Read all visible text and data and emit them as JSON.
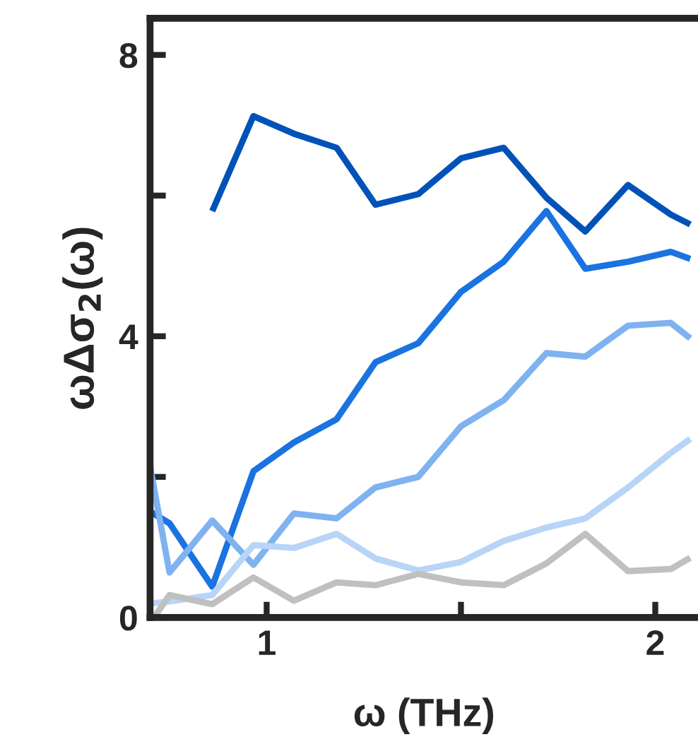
{
  "chart_data": {
    "type": "line",
    "xlabel": "ω (THz)",
    "ylabel": "ωΔσ$_{2}$(ω)",
    "xlim": [
      0.7,
      2.11
    ],
    "ylim": [
      0,
      8.52
    ],
    "xticks": [
      1,
      {
        "value": 1.5,
        "label": null
      },
      2
    ],
    "yticks": [
      0,
      {
        "value": 2,
        "label": null
      },
      4,
      {
        "value": 6,
        "label": null
      },
      8
    ],
    "grid": false,
    "legend": false,
    "marker": "none",
    "line_style": "solid",
    "x": [
      0.7,
      0.75,
      0.86,
      0.966,
      1.07,
      1.18,
      1.28,
      1.39,
      1.5,
      1.61,
      1.72,
      1.82,
      1.93,
      2.04,
      2.09
    ],
    "series": [
      {
        "color": "#0052b8",
        "values": [
          null,
          null,
          5.78,
          7.13,
          6.88,
          6.68,
          5.87,
          6.02,
          6.53,
          6.68,
          5.97,
          5.49,
          6.15,
          5.73,
          5.59
        ]
      },
      {
        "color": "#1a73e0",
        "values": [
          1.51,
          1.34,
          0.44,
          2.08,
          2.49,
          2.82,
          3.63,
          3.9,
          4.63,
          5.06,
          5.78,
          4.96,
          5.06,
          5.2,
          5.1
        ]
      },
      {
        "color": "#7fb2f0",
        "values": [
          2.15,
          0.64,
          1.38,
          0.75,
          1.48,
          1.41,
          1.85,
          2.0,
          2.72,
          3.09,
          3.76,
          3.71,
          4.15,
          4.19,
          3.97
        ]
      },
      {
        "color": "#b8d5f8",
        "values": [
          0.2,
          0.23,
          0.32,
          1.03,
          0.99,
          1.19,
          0.84,
          0.67,
          0.79,
          1.09,
          1.28,
          1.41,
          1.85,
          2.34,
          2.54
        ]
      },
      {
        "color": "#c0c0c0",
        "x": [
          0.71,
          0.75,
          0.86,
          0.966,
          1.07,
          1.18,
          1.28,
          1.39,
          1.5,
          1.61,
          1.72,
          1.82,
          1.93,
          2.04,
          2.09
        ],
        "values": [
          0.0,
          0.32,
          0.19,
          0.57,
          0.24,
          0.5,
          0.46,
          0.62,
          0.5,
          0.46,
          0.77,
          1.19,
          0.66,
          0.69,
          0.85
        ]
      }
    ]
  }
}
